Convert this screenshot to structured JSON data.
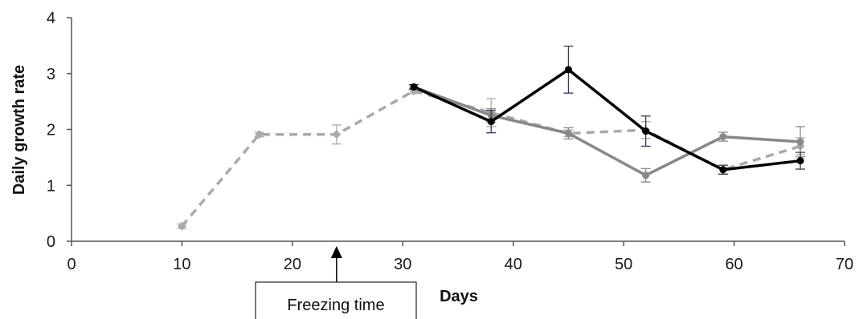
{
  "chart_data": {
    "type": "line",
    "xlabel": "Days",
    "ylabel": "Daily growth rate",
    "xlim": [
      0,
      70
    ],
    "ylim": [
      0,
      4
    ],
    "xticks": [
      0,
      10,
      20,
      30,
      40,
      50,
      60,
      70
    ],
    "yticks": [
      0,
      1,
      2,
      3,
      4
    ],
    "grid": false,
    "legend": "none",
    "series": [
      {
        "color": "#aaaaaa",
        "style": "dashed",
        "marker": "diamond",
        "points": [
          {
            "x": 10,
            "y": 0.27,
            "err": 0.04
          },
          {
            "x": 17,
            "y": 1.91,
            "err": 0.04
          },
          {
            "x": 24,
            "y": 1.91,
            "err": 0.17
          },
          {
            "x": 31,
            "y": 2.69,
            "err": 0.05
          },
          {
            "x": 38,
            "y": 2.3,
            "err": 0.25
          },
          {
            "x": 45,
            "y": 1.93,
            "err": 0.06
          },
          {
            "x": 52,
            "y": 1.99,
            "err": 0.15
          },
          {
            "x": 59,
            "y": 1.28,
            "err": 0.08
          },
          {
            "x": 66,
            "y": 1.7,
            "err": 0.15
          }
        ]
      },
      {
        "color": "#888888",
        "style": "solid",
        "marker": "circle",
        "points": [
          {
            "x": 31,
            "y": 2.76,
            "err": 0.04
          },
          {
            "x": 38,
            "y": 2.25,
            "err": 0.12
          },
          {
            "x": 45,
            "y": 1.93,
            "err": 0.1
          },
          {
            "x": 52,
            "y": 1.18,
            "err": 0.12
          },
          {
            "x": 59,
            "y": 1.87,
            "err": 0.08
          },
          {
            "x": 66,
            "y": 1.78,
            "err": 0.27
          }
        ]
      },
      {
        "color": "#000000",
        "style": "solid",
        "marker": "circle",
        "points": [
          {
            "x": 31,
            "y": 2.76,
            "err": 0.04
          },
          {
            "x": 38,
            "y": 2.14,
            "err": 0.2
          },
          {
            "x": 45,
            "y": 3.07,
            "err": 0.42
          },
          {
            "x": 52,
            "y": 1.97,
            "err": 0.27
          },
          {
            "x": 59,
            "y": 1.28,
            "err": 0.08
          },
          {
            "x": 66,
            "y": 1.44,
            "err": 0.15
          }
        ]
      }
    ],
    "annotations": [
      {
        "text": "Freezing time",
        "x": 24,
        "arrow": "up"
      }
    ]
  }
}
